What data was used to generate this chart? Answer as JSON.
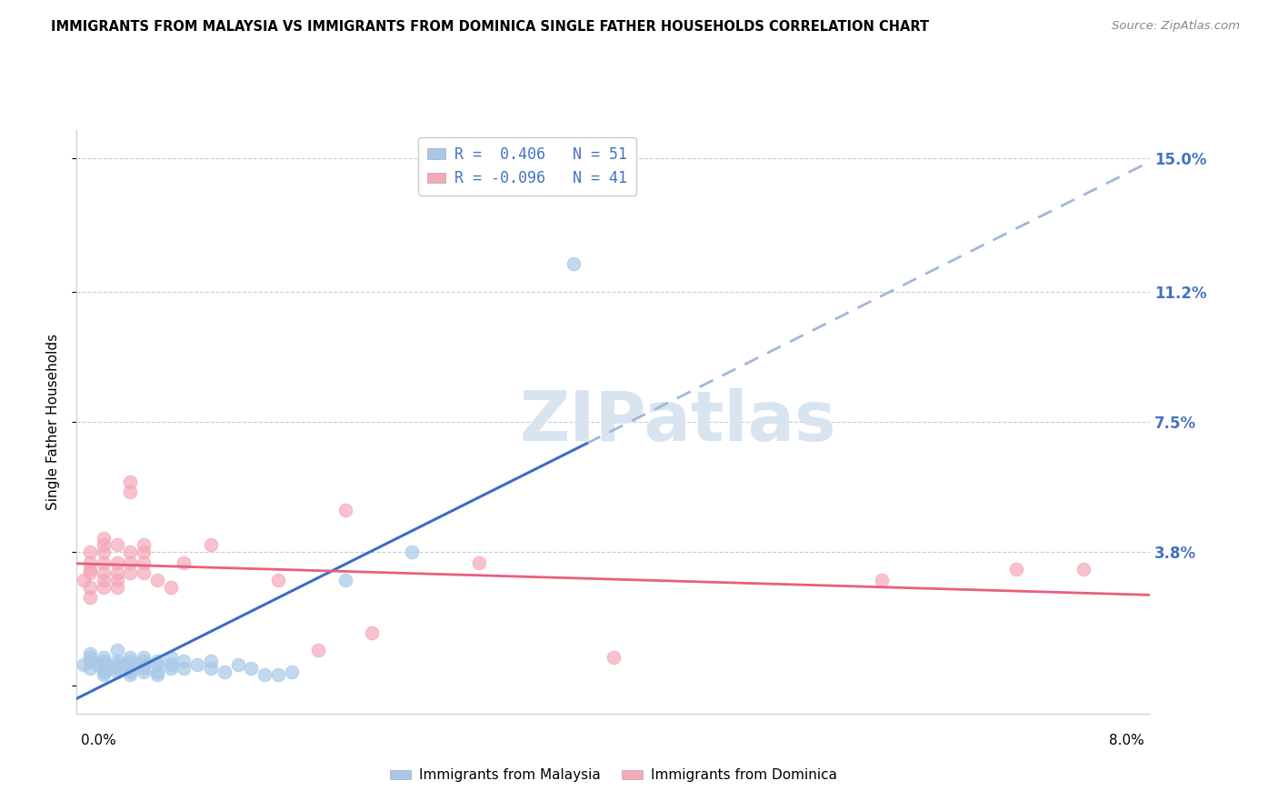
{
  "title": "IMMIGRANTS FROM MALAYSIA VS IMMIGRANTS FROM DOMINICA SINGLE FATHER HOUSEHOLDS CORRELATION CHART",
  "source": "Source: ZipAtlas.com",
  "ylabel": "Single Father Households",
  "yticks": [
    0.0,
    0.038,
    0.075,
    0.112,
    0.15
  ],
  "ytick_labels": [
    "",
    "3.8%",
    "7.5%",
    "11.2%",
    "15.0%"
  ],
  "xlim": [
    0.0,
    0.08
  ],
  "ylim": [
    -0.008,
    0.158
  ],
  "legend_line1": "R =  0.406   N = 51",
  "legend_line2": "R = -0.096   N = 41",
  "malaysia_color": "#a8c8e8",
  "dominica_color": "#f4a8b8",
  "malaysia_line_color": "#3a6fc4",
  "dominica_line_color": "#e8607a",
  "dashed_line_color": "#a0b8d8",
  "tick_label_color": "#4472c4",
  "watermark_color": "#d8e4f0",
  "background_color": "#ffffff",
  "malaysia_scatter": [
    [
      0.0005,
      0.006
    ],
    [
      0.001,
      0.007
    ],
    [
      0.001,
      0.008
    ],
    [
      0.001,
      0.005
    ],
    [
      0.001,
      0.009
    ],
    [
      0.0015,
      0.006
    ],
    [
      0.002,
      0.005
    ],
    [
      0.002,
      0.007
    ],
    [
      0.002,
      0.006
    ],
    [
      0.002,
      0.008
    ],
    [
      0.002,
      0.004
    ],
    [
      0.002,
      0.003
    ],
    [
      0.0025,
      0.005
    ],
    [
      0.003,
      0.007
    ],
    [
      0.003,
      0.005
    ],
    [
      0.003,
      0.006
    ],
    [
      0.003,
      0.004
    ],
    [
      0.003,
      0.01
    ],
    [
      0.0035,
      0.006
    ],
    [
      0.004,
      0.008
    ],
    [
      0.004,
      0.005
    ],
    [
      0.004,
      0.006
    ],
    [
      0.004,
      0.007
    ],
    [
      0.004,
      0.003
    ],
    [
      0.004,
      0.004
    ],
    [
      0.005,
      0.005
    ],
    [
      0.005,
      0.006
    ],
    [
      0.005,
      0.007
    ],
    [
      0.005,
      0.008
    ],
    [
      0.005,
      0.004
    ],
    [
      0.006,
      0.004
    ],
    [
      0.006,
      0.006
    ],
    [
      0.006,
      0.007
    ],
    [
      0.006,
      0.003
    ],
    [
      0.007,
      0.005
    ],
    [
      0.007,
      0.006
    ],
    [
      0.007,
      0.008
    ],
    [
      0.008,
      0.007
    ],
    [
      0.008,
      0.005
    ],
    [
      0.009,
      0.006
    ],
    [
      0.01,
      0.005
    ],
    [
      0.01,
      0.007
    ],
    [
      0.011,
      0.004
    ],
    [
      0.012,
      0.006
    ],
    [
      0.013,
      0.005
    ],
    [
      0.014,
      0.003
    ],
    [
      0.015,
      0.003
    ],
    [
      0.016,
      0.004
    ],
    [
      0.02,
      0.03
    ],
    [
      0.025,
      0.038
    ],
    [
      0.037,
      0.12
    ]
  ],
  "dominica_scatter": [
    [
      0.0005,
      0.03
    ],
    [
      0.001,
      0.025
    ],
    [
      0.001,
      0.028
    ],
    [
      0.001,
      0.035
    ],
    [
      0.001,
      0.032
    ],
    [
      0.001,
      0.038
    ],
    [
      0.001,
      0.033
    ],
    [
      0.002,
      0.03
    ],
    [
      0.002,
      0.028
    ],
    [
      0.002,
      0.032
    ],
    [
      0.002,
      0.035
    ],
    [
      0.002,
      0.038
    ],
    [
      0.002,
      0.04
    ],
    [
      0.002,
      0.042
    ],
    [
      0.003,
      0.03
    ],
    [
      0.003,
      0.035
    ],
    [
      0.003,
      0.028
    ],
    [
      0.003,
      0.032
    ],
    [
      0.003,
      0.04
    ],
    [
      0.004,
      0.038
    ],
    [
      0.004,
      0.035
    ],
    [
      0.004,
      0.032
    ],
    [
      0.004,
      0.055
    ],
    [
      0.004,
      0.058
    ],
    [
      0.005,
      0.032
    ],
    [
      0.005,
      0.035
    ],
    [
      0.005,
      0.038
    ],
    [
      0.005,
      0.04
    ],
    [
      0.006,
      0.03
    ],
    [
      0.007,
      0.028
    ],
    [
      0.008,
      0.035
    ],
    [
      0.01,
      0.04
    ],
    [
      0.015,
      0.03
    ],
    [
      0.018,
      0.01
    ],
    [
      0.02,
      0.05
    ],
    [
      0.022,
      0.015
    ],
    [
      0.03,
      0.035
    ],
    [
      0.04,
      0.008
    ],
    [
      0.06,
      0.03
    ],
    [
      0.07,
      0.033
    ],
    [
      0.075,
      0.033
    ]
  ]
}
